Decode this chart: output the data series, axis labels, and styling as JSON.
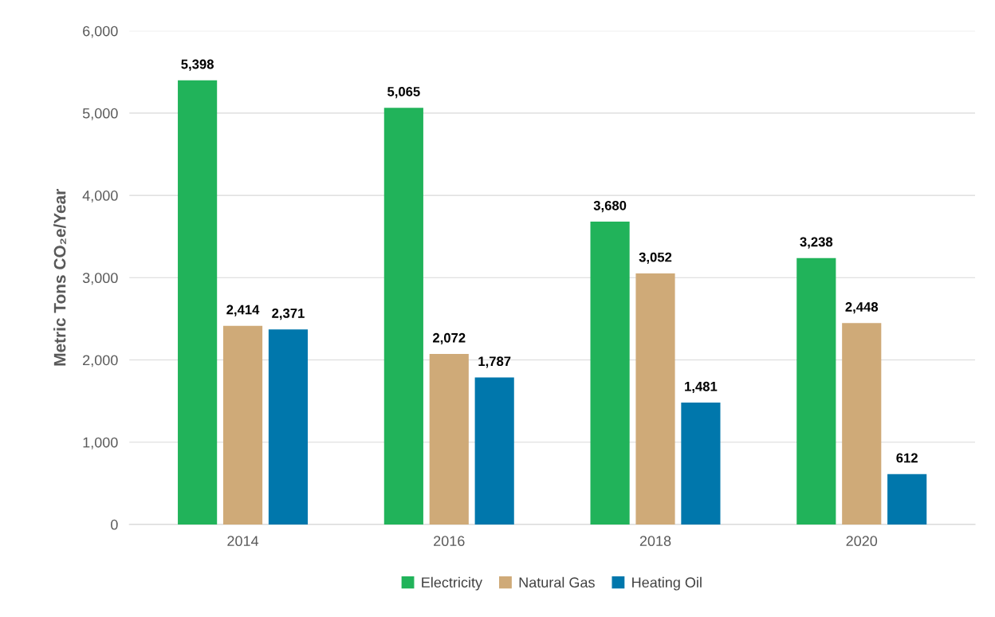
{
  "chart_data": {
    "type": "bar",
    "ylabel": "Metric Tons CO₂e/Year",
    "categories": [
      "2014",
      "2016",
      "2018",
      "2020"
    ],
    "series": [
      {
        "name": "Electricity",
        "color": "#21b35a",
        "values": [
          5398,
          5065,
          3680,
          3238
        ],
        "value_labels": [
          "5,398",
          "5,065",
          "3,680",
          "3,238"
        ]
      },
      {
        "name": "Natural Gas",
        "color": "#cfaa78",
        "values": [
          2414,
          2072,
          3052,
          2448
        ],
        "value_labels": [
          "2,414",
          "2,072",
          "3,052",
          "2,448"
        ]
      },
      {
        "name": "Heating Oil",
        "color": "#0077ac",
        "values": [
          2371,
          1787,
          1481,
          612
        ],
        "value_labels": [
          "2,371",
          "1,787",
          "1,481",
          "612"
        ]
      }
    ],
    "ylim": [
      0,
      6000
    ],
    "yticks": [
      {
        "value": 0,
        "label": "0"
      },
      {
        "value": 1000,
        "label": "1,000"
      },
      {
        "value": 2000,
        "label": "2,000"
      },
      {
        "value": 3000,
        "label": "3,000"
      },
      {
        "value": 4000,
        "label": "4,000"
      },
      {
        "value": 5000,
        "label": "5,000"
      },
      {
        "value": 6000,
        "label": "6,000"
      }
    ],
    "grid": "y",
    "legend": "bottom"
  }
}
